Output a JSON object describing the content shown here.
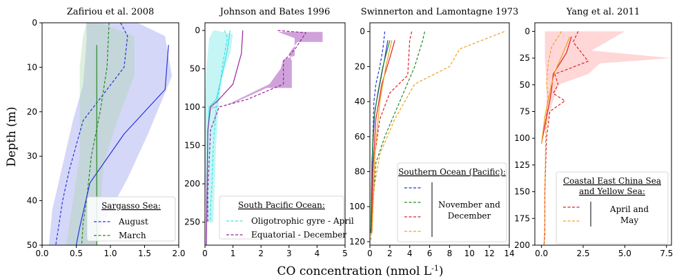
{
  "figure": {
    "ylabel": "Depth (m)",
    "xlabel_main": "CO concentration (nmol L",
    "xlabel_sup": "-1",
    "xlabel_end": ")"
  },
  "chart_data": [
    {
      "type": "line",
      "title": "Zafiriou et al. 2008",
      "xlim": [
        0,
        2.0
      ],
      "ylim": [
        50,
        0
      ],
      "xticks": [
        0.0,
        0.5,
        1.0,
        1.5,
        2.0
      ],
      "xtick_labels": [
        "0.0",
        "0.5",
        "1.0",
        "1.5",
        "2.0"
      ],
      "yticks": [
        0,
        10,
        20,
        30,
        40,
        50
      ],
      "ytick_labels": [
        "0",
        "10",
        "20",
        "30",
        "40",
        "50"
      ],
      "legend": {
        "title": "Sargasso Sea:",
        "placement": "lower-right",
        "entries": [
          {
            "label": "August",
            "color": "#2233dd"
          },
          {
            "label": "March",
            "color": "#228822"
          }
        ]
      },
      "bands": [
        {
          "color": "#9aa0f0",
          "opacity": 0.42,
          "points": [
            [
              1.4,
              0
            ],
            [
              1.8,
              3
            ],
            [
              1.9,
              12
            ],
            [
              1.55,
              25
            ],
            [
              1.25,
              35
            ],
            [
              0.9,
              45
            ],
            [
              0.8,
              50
            ],
            [
              0.1,
              50
            ],
            [
              0.15,
              42
            ],
            [
              0.3,
              32
            ],
            [
              0.45,
              22
            ],
            [
              0.6,
              14
            ],
            [
              0.65,
              4
            ],
            [
              0.65,
              0
            ]
          ]
        },
        {
          "color": "#a8d6a8",
          "opacity": 0.38,
          "points": [
            [
              0.85,
              0
            ],
            [
              1.35,
              3
            ],
            [
              1.35,
              12
            ],
            [
              1.1,
              22
            ],
            [
              0.9,
              32
            ],
            [
              0.85,
              42
            ],
            [
              0.8,
              50
            ],
            [
              0.35,
              50
            ],
            [
              0.45,
              40
            ],
            [
              0.55,
              30
            ],
            [
              0.55,
              20
            ],
            [
              0.55,
              10
            ],
            [
              0.6,
              3
            ],
            [
              0.65,
              0
            ]
          ]
        }
      ],
      "series": [
        {
          "style": "dashed",
          "color": "#2233dd",
          "x": [
            1.15,
            1.25,
            1.2,
            0.6,
            0.4,
            0.3,
            0.25,
            0.2
          ],
          "y": [
            0,
            3,
            10,
            22,
            33,
            40,
            45,
            50
          ]
        },
        {
          "style": "dashed",
          "color": "#228822",
          "x": [
            0.98,
            0.95,
            0.85,
            0.72,
            0.65,
            0.6,
            0.58
          ],
          "y": [
            0,
            10,
            20,
            30,
            40,
            45,
            50
          ]
        },
        {
          "style": "solid",
          "color": "#2233dd",
          "x": [
            1.85,
            1.8,
            1.2,
            0.7,
            0.55,
            0.5
          ],
          "y": [
            5,
            15,
            25,
            36,
            46,
            50
          ]
        },
        {
          "style": "solid",
          "color": "#228822",
          "x": [
            0.8,
            0.8,
            0.8,
            0.8,
            0.8
          ],
          "y": [
            5,
            15,
            25,
            40,
            50
          ]
        }
      ]
    },
    {
      "type": "line",
      "title": "Johnson and Bates 1996",
      "xlim": [
        0,
        5
      ],
      "ylim": [
        280,
        -10
      ],
      "xticks": [
        0,
        1,
        2,
        3,
        4,
        5
      ],
      "xtick_labels": [
        "0",
        "1",
        "2",
        "3",
        "4",
        "5"
      ],
      "yticks": [
        0,
        50,
        100,
        150,
        200,
        250
      ],
      "ytick_labels": [
        "0",
        "50",
        "100",
        "150",
        "200",
        "250"
      ],
      "legend": {
        "title": "South Pacific Ocean:",
        "placement": "lower-right",
        "entries": [
          {
            "label": "Oligotrophic gyre - April",
            "color": "#33e6e6"
          },
          {
            "label": "Equatorial - December",
            "color": "#992299"
          }
        ]
      },
      "bands": [
        {
          "color": "#7fe8e8",
          "opacity": 0.45,
          "points": [
            [
              0.4,
              0
            ],
            [
              1.0,
              5
            ],
            [
              0.9,
              30
            ],
            [
              0.6,
              60
            ],
            [
              0.5,
              95
            ],
            [
              0.4,
              150
            ],
            [
              0.35,
              200
            ],
            [
              0.3,
              250
            ],
            [
              0.0,
              250
            ],
            [
              0.0,
              100
            ],
            [
              0.05,
              50
            ],
            [
              0.15,
              10
            ],
            [
              0.3,
              0
            ]
          ]
        },
        {
          "color": "#aa55bb",
          "opacity": 0.55,
          "points": [
            [
              2.6,
              2
            ],
            [
              4.2,
              2
            ],
            [
              4.2,
              15
            ],
            [
              3.3,
              15
            ],
            [
              3.0,
              30
            ],
            [
              3.1,
              40
            ],
            [
              3.1,
              75
            ],
            [
              2.2,
              75
            ],
            [
              1.0,
              95
            ],
            [
              0.3,
              100
            ],
            [
              0.2,
              102
            ],
            [
              0.9,
              95
            ],
            [
              2.3,
              70
            ],
            [
              2.7,
              50
            ],
            [
              2.8,
              38
            ],
            [
              3.2,
              33
            ],
            [
              3.2,
              10
            ],
            [
              2.6,
              2
            ]
          ]
        }
      ],
      "series": [
        {
          "style": "dashed",
          "color": "#33e6e6",
          "x": [
            0.7,
            0.8,
            0.65,
            0.5,
            0.4,
            0.3,
            0.25,
            0.2,
            0.2
          ],
          "y": [
            0,
            10,
            40,
            80,
            100,
            150,
            200,
            230,
            250
          ]
        },
        {
          "style": "dashed",
          "color": "#992299",
          "x": [
            2.6,
            3.6,
            3.2,
            2.8,
            2.8,
            1.5,
            0.5,
            0.2,
            0.15,
            0.1,
            0.1
          ],
          "y": [
            0,
            3,
            25,
            40,
            70,
            90,
            100,
            130,
            170,
            210,
            250
          ]
        },
        {
          "style": "solid",
          "color": "#33e6e6",
          "x": [
            0.9,
            0.8,
            0.6,
            0.4,
            0.15,
            0.1,
            0.08,
            0.05
          ],
          "y": [
            0,
            25,
            60,
            90,
            100,
            140,
            200,
            280
          ]
        },
        {
          "style": "solid",
          "color": "#992299",
          "x": [
            1.35,
            1.3,
            1.0,
            0.5,
            0.2,
            0.1,
            0.05
          ],
          "y": [
            0,
            30,
            70,
            90,
            100,
            130,
            280
          ]
        }
      ]
    },
    {
      "type": "line",
      "title": "Swinnerton and Lamontagne 1973",
      "xlim": [
        0,
        14
      ],
      "ylim": [
        122,
        -5
      ],
      "xticks": [
        0,
        2,
        4,
        6,
        8,
        10,
        12,
        14
      ],
      "xtick_labels": [
        "0",
        "2",
        "4",
        "6",
        "8",
        "10",
        "12",
        "14"
      ],
      "yticks": [
        0,
        20,
        40,
        60,
        80,
        100,
        120
      ],
      "ytick_labels": [
        "0",
        "20",
        "40",
        "60",
        "80",
        "100",
        "120"
      ],
      "legend": {
        "title": "Southern Ocean (Pacific):",
        "placement": "lower-right",
        "bracket_label_line1": "November and",
        "bracket_label_line2": "December",
        "entries": [
          {
            "label": "",
            "color": "#2233dd"
          },
          {
            "label": "",
            "color": "#228822"
          },
          {
            "label": "",
            "color": "#dd2222"
          },
          {
            "label": "",
            "color": "#f0a020"
          }
        ]
      },
      "bands": [],
      "series": [
        {
          "style": "dashed",
          "color": "#2233dd",
          "x": [
            1.5,
            1.3,
            1.0,
            0.6,
            0.4,
            0.3,
            0.2,
            0.15,
            0.1
          ],
          "y": [
            0,
            10,
            20,
            30,
            40,
            60,
            80,
            100,
            115
          ]
        },
        {
          "style": "dashed",
          "color": "#228822",
          "x": [
            5.5,
            5.3,
            4.5,
            3.0,
            1.5,
            0.6,
            0.3,
            0.2
          ],
          "y": [
            0,
            5,
            20,
            40,
            60,
            75,
            100,
            115
          ]
        },
        {
          "style": "dashed",
          "color": "#dd2222",
          "x": [
            4.2,
            4.0,
            3.8,
            2.0,
            1.0,
            0.5,
            0.3,
            0.2
          ],
          "y": [
            0,
            5,
            25,
            35,
            50,
            70,
            100,
            115
          ]
        },
        {
          "style": "dashed",
          "color": "#f0a020",
          "x": [
            13.5,
            9.0,
            8.0,
            4.5,
            2.5,
            1.0,
            0.4,
            0.2,
            0.1
          ],
          "y": [
            0,
            10,
            20,
            30,
            50,
            70,
            90,
            110,
            120
          ]
        },
        {
          "style": "solid",
          "color": "#2233dd",
          "x": [
            1.8,
            1.5,
            1.0,
            0.5,
            0.3,
            0.2,
            0.1
          ],
          "y": [
            5,
            15,
            30,
            45,
            65,
            90,
            115
          ]
        },
        {
          "style": "solid",
          "color": "#228822",
          "x": [
            2.0,
            1.3,
            0.8,
            0.4,
            0.2,
            0.1
          ],
          "y": [
            5,
            20,
            35,
            50,
            75,
            115
          ]
        },
        {
          "style": "solid",
          "color": "#dd2222",
          "x": [
            2.5,
            2.0,
            1.2,
            0.6,
            0.3,
            0.15
          ],
          "y": [
            5,
            15,
            30,
            50,
            80,
            115
          ]
        },
        {
          "style": "solid",
          "color": "#f0a020",
          "x": [
            2.2,
            1.6,
            1.0,
            0.5,
            0.2
          ],
          "y": [
            5,
            20,
            40,
            70,
            115
          ]
        }
      ]
    },
    {
      "type": "line",
      "title": "Yang et al. 2011",
      "xlim": [
        -0.4,
        7.8
      ],
      "ylim": [
        200,
        -8
      ],
      "xticks": [
        0.0,
        2.5,
        5.0,
        7.5
      ],
      "xtick_labels": [
        "0.0",
        "2.5",
        "5.0",
        "7.5"
      ],
      "yticks": [
        0,
        25,
        50,
        75,
        100,
        125,
        150,
        175,
        200
      ],
      "ytick_labels": [
        "0",
        "25",
        "50",
        "75",
        "100",
        "125",
        "150",
        "175",
        "200"
      ],
      "legend": {
        "title": "Coastal East China Sea",
        "title_line2": "and Yellow Sea:",
        "placement": "lower-right",
        "bracket_label_line1": "April and",
        "bracket_label_line2": "May",
        "entries": [
          {
            "label": "",
            "color": "#dd2222"
          },
          {
            "label": "",
            "color": "#f0a020"
          }
        ]
      },
      "bands": [
        {
          "color": "#ffa0a0",
          "opacity": 0.42,
          "points": [
            [
              0.2,
              0
            ],
            [
              5.0,
              0
            ],
            [
              3.0,
              18
            ],
            [
              7.8,
              25
            ],
            [
              3.5,
              30
            ],
            [
              2.8,
              40
            ],
            [
              1.0,
              50
            ],
            [
              0.8,
              60
            ],
            [
              0.5,
              75
            ],
            [
              0.3,
              90
            ],
            [
              0.0,
              100
            ],
            [
              0.3,
              75
            ],
            [
              0.3,
              50
            ],
            [
              0.2,
              25
            ],
            [
              0.2,
              0
            ]
          ]
        }
      ],
      "series": [
        {
          "style": "dashed",
          "color": "#dd2222",
          "x": [
            2.2,
            1.9,
            2.8,
            0.8,
            1.0,
            0.7,
            1.4,
            0.5,
            0.3,
            0.2,
            0.2,
            0.15
          ],
          "y": [
            0,
            10,
            28,
            40,
            50,
            58,
            65,
            75,
            100,
            150,
            190,
            200
          ]
        },
        {
          "style": "dashed",
          "color": "#f0a020",
          "x": [
            1.2,
            0.6,
            0.4,
            0.3,
            0.4,
            0.3,
            0.25,
            0.2,
            0.2,
            0.15
          ],
          "y": [
            0,
            15,
            30,
            50,
            60,
            75,
            100,
            150,
            180,
            200
          ]
        },
        {
          "style": "solid",
          "color": "#dd2222",
          "x": [
            1.8,
            1.5,
            0.7,
            0.6,
            0.5,
            0.3,
            0.0
          ],
          "y": [
            5,
            20,
            40,
            55,
            65,
            80,
            105
          ]
        },
        {
          "style": "solid",
          "color": "#f0a020",
          "x": [
            1.7,
            1.3,
            0.8,
            0.6,
            0.4,
            0.2,
            0.0
          ],
          "y": [
            5,
            20,
            38,
            50,
            65,
            80,
            105
          ]
        }
      ]
    }
  ]
}
